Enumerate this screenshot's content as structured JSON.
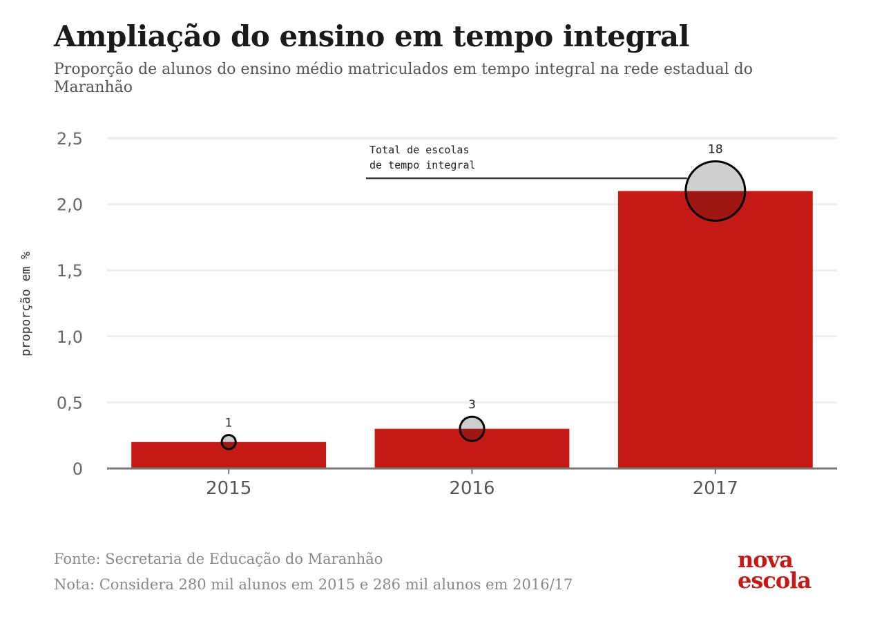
{
  "title": "Ampliação do ensino em tempo integral",
  "subtitle": "Proporção de alunos do ensino médio matriculados em tempo integral na rede estadual do Maranhão",
  "chart_data": {
    "type": "bar",
    "categories": [
      "2015",
      "2016",
      "2017"
    ],
    "values": [
      0.2,
      0.3,
      2.1
    ],
    "secondary_series": {
      "type": "bubble",
      "values": [
        1,
        3,
        18
      ],
      "labels": [
        "1",
        "3",
        "18"
      ]
    },
    "ylabel": "proporção em %",
    "xlabel": "",
    "ylim": [
      0,
      2.5
    ],
    "yticks": [
      0,
      0.5,
      1.0,
      1.5,
      2.0,
      2.5
    ],
    "ytick_labels": [
      "0",
      "0,5",
      "1,0",
      "1,5",
      "2,0",
      "2,5"
    ],
    "annotation": "Total de escolas de tempo integral",
    "annotation_lines": [
      "Total de escolas",
      "de tempo integral"
    ],
    "grid": true,
    "colors": {
      "bar": "#c41a16",
      "bubble_fill": "#cccccc",
      "bubble_stroke": "#000000",
      "grid": "#eeeeee",
      "axis": "#777777"
    }
  },
  "footer": {
    "source": "Fonte: Secretaria de Educação do Maranhão",
    "note": "Nota: Considera 280 mil alunos em 2015 e 286 mil alunos em 2016/17"
  },
  "logo": {
    "line1": "nova",
    "line2": "escola"
  }
}
